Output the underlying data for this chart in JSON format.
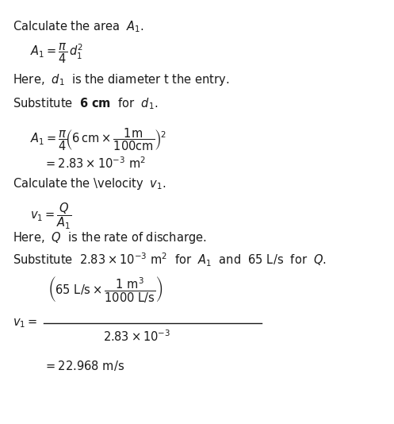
{
  "bg_color": "#ffffff",
  "text_color": "#1a1a1a",
  "fig_width": 4.97,
  "fig_height": 5.34,
  "dpi": 100
}
